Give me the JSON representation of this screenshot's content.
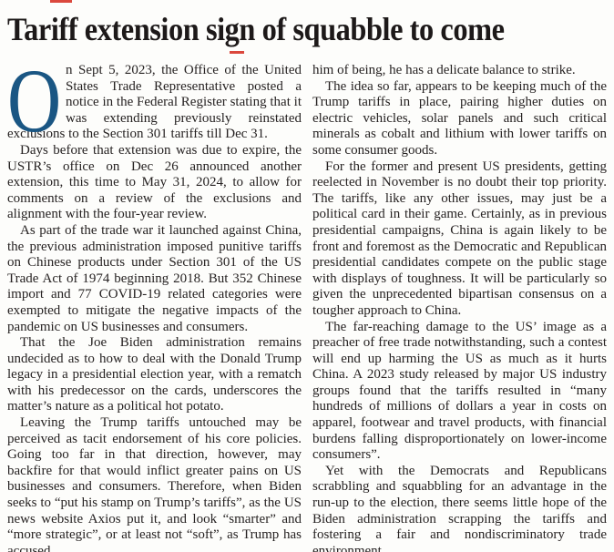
{
  "headline": "Tariff extension sign of squabble to come",
  "accents": {
    "rule_red": "#d5281b",
    "dropcap_blue": "#1a5683",
    "text_color": "#262222",
    "background": "#fdfdfb"
  },
  "article": {
    "dropcap": "O",
    "left_column": {
      "paragraphs": [
        "n Sept 5, 2023, the Office of the United States Trade Representative posted a notice in the Federal Register stating that it was extending previously reinstated exclusions to the Section 301 tariffs till Dec 31.",
        "Days before that extension was due to expire, the USTR’s office on Dec 26 announced another extension, this time to May 31, 2024, to allow for comments on a review of the exclusions and alignment with the four-year review.",
        "As part of the trade war it launched against China, the previous administration imposed punitive tariffs on Chinese products under Section 301 of the US Trade Act of 1974 beginning 2018. But 352 Chinese import and 77 COVID-19 related categories were exempted to mitigate the negative impacts of the pandemic on US businesses and consumers.",
        "That the Joe Biden administration remains undecided as to how to deal with the Donald Trump legacy in a presidential election year, with a rematch with his predecessor on the cards, underscores the matter’s nature as a political hot potato.",
        "Leaving the Trump tariffs untouched may be perceived as tacit endorsement of his core policies. Going too far in that direction, however, may backfire for that would inflict greater pains on US businesses and consumers. Therefore, when Biden seeks to “put his stamp on Trump’s tariffs”, as the US news website Axios put it, and look “smarter” and “more strategic”, or at least not “soft”, as Trump has accused"
      ]
    },
    "right_column": {
      "paragraphs": [
        "him of being, he has a delicate balance to strike.",
        "The idea so far, appears to be keeping much of the Trump tariffs in place, pairing higher duties on electric vehicles, solar panels and such critical minerals as cobalt and lithium with lower tariffs on some consumer goods.",
        "For the former and present US presidents, getting reelected in November is no doubt their top priority. The tariffs, like any other issues, may just be a political card in their game. Certainly, as in previous presidential campaigns, China is again likely to be front and foremost as the Democratic and Republican presidential candidates compete on the public stage with displays of toughness. It will be particularly so given the unprecedented bipartisan consensus on a tougher approach to China.",
        "The far-reaching damage to the US’ image as a preacher of free trade notwithstanding, such a contest will end up harming the US as much as it hurts China. A 2023 study released by major US industry groups found that the tariffs resulted in “many hundreds of millions of dollars a year in costs on apparel, footwear and travel products, with financial burdens falling disproportionately on lower-income consumers”.",
        "Yet with the Democrats and Republicans scrabbling and squabbling for an advantage in the run-up to the election, there seems little hope of the Biden administration scrapping the tariffs and fostering a fair and nondiscriminatory trade environment."
      ]
    }
  }
}
